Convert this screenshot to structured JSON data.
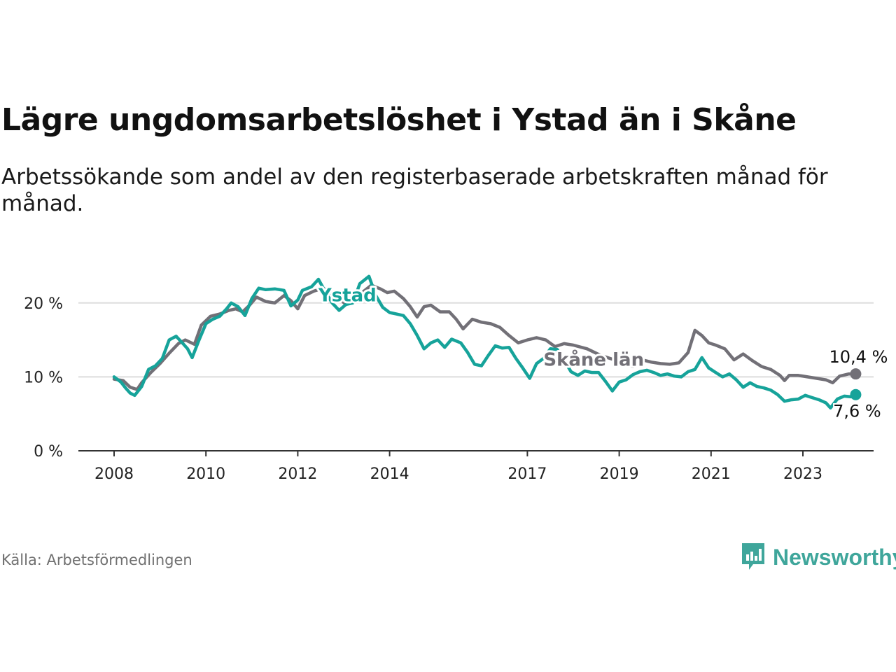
{
  "header": {
    "title": "Lägre ungdomsarbetslöshet i Ystad än i Skåne",
    "subtitle": "Arbetssökande som andel av den registerbaserade arbetskraften månad för månad."
  },
  "footer": {
    "source": "Källa: Arbetsförmedlingen",
    "brand": "Newsworthy"
  },
  "colors": {
    "ystad": "#16a39a",
    "skane": "#727077",
    "grid": "#dddddd",
    "axis": "#333333",
    "brand": "#3fa69b"
  },
  "chart_data": {
    "type": "line",
    "title": "Lägre ungdomsarbetslöshet i Ystad än i Skåne",
    "xlabel": "",
    "ylabel": "",
    "x_range": [
      2007.8,
      2024.9
    ],
    "ylim": [
      0,
      25
    ],
    "y_ticks": [
      0,
      10,
      20
    ],
    "y_tick_labels": [
      "0 %",
      "10 %",
      "20 %"
    ],
    "x_ticks": [
      2008,
      2010,
      2012,
      2014,
      2017,
      2019,
      2021,
      2023
    ],
    "x_tick_labels": [
      "2008",
      "2010",
      "2012",
      "2014",
      "2017",
      "2019",
      "2021",
      "2023"
    ],
    "grid": true,
    "series": [
      {
        "name": "Skåne län",
        "label": "Skåne län",
        "end_label": "10,4 %",
        "end_value": 10.4,
        "points": [
          [
            2008.0,
            9.7
          ],
          [
            2008.2,
            9.5
          ],
          [
            2008.35,
            8.6
          ],
          [
            2008.5,
            8.3
          ],
          [
            2008.6,
            9.2
          ],
          [
            2008.8,
            10.6
          ],
          [
            2009.0,
            11.8
          ],
          [
            2009.2,
            13.2
          ],
          [
            2009.4,
            14.5
          ],
          [
            2009.55,
            15.0
          ],
          [
            2009.75,
            14.4
          ],
          [
            2009.9,
            17.0
          ],
          [
            2010.1,
            18.2
          ],
          [
            2010.3,
            18.5
          ],
          [
            2010.5,
            19.0
          ],
          [
            2010.65,
            19.2
          ],
          [
            2010.8,
            18.8
          ],
          [
            2010.95,
            19.7
          ],
          [
            2011.1,
            20.8
          ],
          [
            2011.3,
            20.2
          ],
          [
            2011.5,
            20.0
          ],
          [
            2011.7,
            21.0
          ],
          [
            2011.85,
            20.3
          ],
          [
            2012.0,
            19.2
          ],
          [
            2012.15,
            21.0
          ],
          [
            2012.35,
            21.6
          ],
          [
            2012.55,
            22.0
          ],
          [
            2012.75,
            21.2
          ],
          [
            2012.9,
            20.6
          ],
          [
            2013.05,
            19.8
          ],
          [
            2013.2,
            20.6
          ],
          [
            2013.4,
            21.4
          ],
          [
            2013.6,
            22.4
          ],
          [
            2013.8,
            21.9
          ],
          [
            2013.95,
            21.4
          ],
          [
            2014.1,
            21.6
          ],
          [
            2014.3,
            20.6
          ],
          [
            2014.45,
            19.5
          ],
          [
            2014.6,
            18.1
          ],
          [
            2014.75,
            19.5
          ],
          [
            2014.9,
            19.7
          ],
          [
            2015.1,
            18.8
          ],
          [
            2015.3,
            18.8
          ],
          [
            2015.45,
            17.8
          ],
          [
            2015.6,
            16.5
          ],
          [
            2015.8,
            17.8
          ],
          [
            2016.0,
            17.4
          ],
          [
            2016.2,
            17.2
          ],
          [
            2016.4,
            16.7
          ],
          [
            2016.6,
            15.6
          ],
          [
            2016.8,
            14.6
          ],
          [
            2017.0,
            15.0
          ],
          [
            2017.2,
            15.3
          ],
          [
            2017.4,
            15.0
          ],
          [
            2017.6,
            14.1
          ],
          [
            2017.8,
            14.5
          ],
          [
            2018.0,
            14.3
          ],
          [
            2018.3,
            13.8
          ],
          [
            2018.6,
            12.9
          ],
          [
            2018.9,
            12.3
          ],
          [
            2019.1,
            11.8
          ],
          [
            2019.3,
            11.4
          ],
          [
            2019.5,
            12.3
          ],
          [
            2019.7,
            12.0
          ],
          [
            2019.9,
            11.8
          ],
          [
            2020.1,
            11.7
          ],
          [
            2020.3,
            11.9
          ],
          [
            2020.5,
            13.3
          ],
          [
            2020.65,
            16.3
          ],
          [
            2020.8,
            15.6
          ],
          [
            2020.95,
            14.6
          ],
          [
            2021.1,
            14.3
          ],
          [
            2021.3,
            13.8
          ],
          [
            2021.5,
            12.3
          ],
          [
            2021.7,
            13.1
          ],
          [
            2021.9,
            12.2
          ],
          [
            2022.1,
            11.4
          ],
          [
            2022.3,
            11.0
          ],
          [
            2022.5,
            10.2
          ],
          [
            2022.6,
            9.5
          ],
          [
            2022.7,
            10.2
          ],
          [
            2022.9,
            10.2
          ],
          [
            2023.1,
            10.0
          ],
          [
            2023.3,
            9.8
          ],
          [
            2023.5,
            9.6
          ],
          [
            2023.65,
            9.2
          ],
          [
            2023.8,
            10.1
          ],
          [
            2024.0,
            10.4
          ],
          [
            2024.15,
            10.4
          ]
        ]
      },
      {
        "name": "Ystad",
        "label": "Ystad",
        "end_label": "7,6 %",
        "end_value": 7.6,
        "points": [
          [
            2008.0,
            10.0
          ],
          [
            2008.15,
            9.3
          ],
          [
            2008.25,
            8.5
          ],
          [
            2008.35,
            7.8
          ],
          [
            2008.45,
            7.5
          ],
          [
            2008.6,
            8.7
          ],
          [
            2008.75,
            11.0
          ],
          [
            2008.9,
            11.5
          ],
          [
            2009.05,
            12.5
          ],
          [
            2009.2,
            15.0
          ],
          [
            2009.35,
            15.5
          ],
          [
            2009.5,
            14.5
          ],
          [
            2009.6,
            13.8
          ],
          [
            2009.7,
            12.6
          ],
          [
            2009.85,
            15.0
          ],
          [
            2010.0,
            17.2
          ],
          [
            2010.15,
            17.8
          ],
          [
            2010.3,
            18.2
          ],
          [
            2010.45,
            19.2
          ],
          [
            2010.55,
            20.0
          ],
          [
            2010.7,
            19.5
          ],
          [
            2010.85,
            18.3
          ],
          [
            2011.0,
            20.6
          ],
          [
            2011.15,
            22.0
          ],
          [
            2011.3,
            21.8
          ],
          [
            2011.5,
            21.9
          ],
          [
            2011.7,
            21.7
          ],
          [
            2011.85,
            19.6
          ],
          [
            2012.0,
            20.4
          ],
          [
            2012.1,
            21.7
          ],
          [
            2012.3,
            22.2
          ],
          [
            2012.45,
            23.2
          ],
          [
            2012.6,
            21.5
          ],
          [
            2012.75,
            20.0
          ],
          [
            2012.9,
            19.0
          ],
          [
            2013.05,
            19.8
          ],
          [
            2013.2,
            20.0
          ],
          [
            2013.35,
            22.6
          ],
          [
            2013.55,
            23.6
          ],
          [
            2013.7,
            21.0
          ],
          [
            2013.85,
            19.4
          ],
          [
            2014.0,
            18.7
          ],
          [
            2014.15,
            18.5
          ],
          [
            2014.3,
            18.3
          ],
          [
            2014.45,
            17.2
          ],
          [
            2014.6,
            15.6
          ],
          [
            2014.75,
            13.8
          ],
          [
            2014.9,
            14.6
          ],
          [
            2015.05,
            15.0
          ],
          [
            2015.2,
            14.0
          ],
          [
            2015.35,
            15.1
          ],
          [
            2015.55,
            14.6
          ],
          [
            2015.7,
            13.3
          ],
          [
            2015.85,
            11.7
          ],
          [
            2016.0,
            11.5
          ],
          [
            2016.15,
            12.9
          ],
          [
            2016.3,
            14.2
          ],
          [
            2016.45,
            13.9
          ],
          [
            2016.6,
            14.0
          ],
          [
            2016.75,
            12.5
          ],
          [
            2016.9,
            11.2
          ],
          [
            2017.05,
            9.8
          ],
          [
            2017.2,
            11.8
          ],
          [
            2017.35,
            12.5
          ],
          [
            2017.5,
            13.8
          ],
          [
            2017.65,
            13.7
          ],
          [
            2017.8,
            12.3
          ],
          [
            2017.95,
            10.7
          ],
          [
            2018.1,
            10.2
          ],
          [
            2018.25,
            10.8
          ],
          [
            2018.4,
            10.6
          ],
          [
            2018.55,
            10.6
          ],
          [
            2018.7,
            9.4
          ],
          [
            2018.85,
            8.1
          ],
          [
            2019.0,
            9.3
          ],
          [
            2019.15,
            9.6
          ],
          [
            2019.3,
            10.3
          ],
          [
            2019.45,
            10.7
          ],
          [
            2019.6,
            10.9
          ],
          [
            2019.75,
            10.6
          ],
          [
            2019.9,
            10.2
          ],
          [
            2020.05,
            10.4
          ],
          [
            2020.2,
            10.1
          ],
          [
            2020.35,
            10.0
          ],
          [
            2020.5,
            10.7
          ],
          [
            2020.65,
            11.0
          ],
          [
            2020.8,
            12.6
          ],
          [
            2020.95,
            11.2
          ],
          [
            2021.1,
            10.6
          ],
          [
            2021.25,
            10.0
          ],
          [
            2021.4,
            10.4
          ],
          [
            2021.55,
            9.6
          ],
          [
            2021.7,
            8.6
          ],
          [
            2021.85,
            9.2
          ],
          [
            2022.0,
            8.7
          ],
          [
            2022.15,
            8.5
          ],
          [
            2022.3,
            8.2
          ],
          [
            2022.45,
            7.6
          ],
          [
            2022.6,
            6.7
          ],
          [
            2022.75,
            6.9
          ],
          [
            2022.9,
            7.0
          ],
          [
            2023.05,
            7.5
          ],
          [
            2023.2,
            7.2
          ],
          [
            2023.35,
            6.9
          ],
          [
            2023.5,
            6.5
          ],
          [
            2023.6,
            5.8
          ],
          [
            2023.75,
            7.0
          ],
          [
            2023.9,
            7.4
          ],
          [
            2024.05,
            7.3
          ],
          [
            2024.15,
            7.6
          ]
        ]
      }
    ]
  }
}
